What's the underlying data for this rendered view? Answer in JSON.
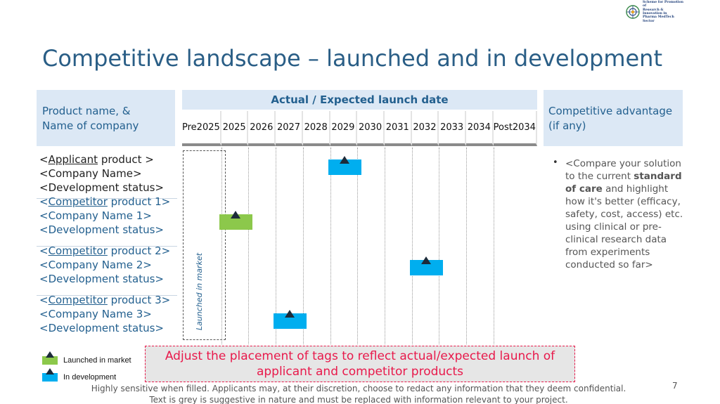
{
  "logo": {
    "line1": "Scheme for Promotion of",
    "line2": "Research & Innovation in",
    "line3": "Pharma MedTech Sector"
  },
  "title": "Competitive landscape – launched and in development",
  "header": {
    "left": [
      "Product name, &",
      "Name of company"
    ],
    "middle": "Actual / Expected launch date",
    "right": [
      "Competitive advantage",
      "(if any)"
    ]
  },
  "years": [
    [
      "Pre",
      "2025"
    ],
    [
      "2025"
    ],
    [
      "2026"
    ],
    [
      "2027"
    ],
    [
      "2028"
    ],
    [
      "2029"
    ],
    [
      "2030"
    ],
    [
      "2031"
    ],
    [
      "2032"
    ],
    [
      "2033"
    ],
    [
      "2034"
    ],
    [
      "Post",
      "2034"
    ]
  ],
  "pre_label": "Launched in market",
  "products": [
    {
      "name_prefix": "<",
      "name_linked": "Applicant",
      "name_suffix": " product >",
      "company": "<Company Name>",
      "status": "<Development status>",
      "tag": "development",
      "launch_year": "2029",
      "style": "applicant"
    },
    {
      "name_prefix": "<",
      "name_linked": "Competitor",
      "name_suffix": " product 1>",
      "company": "<Company Name 1>",
      "status": "<Development status>",
      "tag": "launched",
      "launch_year": "2025",
      "style": "competitor"
    },
    {
      "name_prefix": "<",
      "name_linked": "Competitor",
      "name_suffix": " product 2>",
      "company": "<Company Name 2>",
      "status": "<Development status>",
      "tag": "development",
      "launch_year": "2032",
      "style": "competitor"
    },
    {
      "name_prefix": "<",
      "name_linked": "Competitor",
      "name_suffix": " product 3>",
      "company": "<Company Name 3>",
      "status": "<Development status>",
      "tag": "development",
      "launch_year": "2027",
      "style": "competitor"
    }
  ],
  "advantage": {
    "bullet": "•",
    "part1": "<Compare your solution to the current ",
    "bold1": "standard",
    "bold2": "of care",
    "part2": " and highlight how it's better (efficacy, safety, cost, access) etc. using clinical or pre-clinical research data from experiments conducted so far>"
  },
  "legend": {
    "launched": "Launched in market",
    "development": "In development"
  },
  "note": "Adjust the placement of tags to reflect actual/expected launch of applicant and competitor products",
  "footer": {
    "line1": "Highly sensitive when filled. Applicants may, at their discretion, choose to redact any information that they deem confidential.",
    "line2": "Text is grey is suggestive in nature and must be replaced with information relevant to your project."
  },
  "page_number": "7",
  "colors": {
    "title": "#2a5e86",
    "header_bg": "#dce8f5",
    "launched": "#8cc84b",
    "development": "#00aeef",
    "note": "#e8194b"
  }
}
